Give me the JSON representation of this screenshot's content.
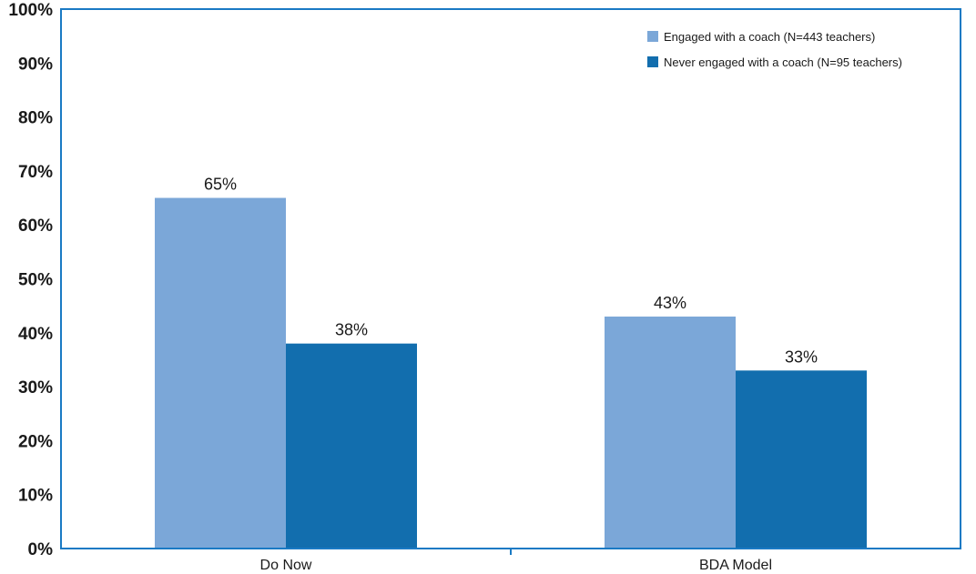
{
  "chart_data": {
    "type": "bar",
    "categories": [
      "Do Now",
      "BDA Model"
    ],
    "series": [
      {
        "name": "Engaged with a coach (N=443 teachers)",
        "values": [
          65,
          43
        ],
        "labels": [
          "65%",
          "43%"
        ],
        "color": "#7ba7d8"
      },
      {
        "name": "Never engaged with a coach (N=95 teachers)",
        "values": [
          38,
          33
        ],
        "labels": [
          "38%",
          "33%"
        ],
        "color": "#126eae"
      }
    ],
    "y_ticks": [
      "0%",
      "10%",
      "20%",
      "30%",
      "40%",
      "50%",
      "60%",
      "70%",
      "80%",
      "90%",
      "100%"
    ],
    "ylim": [
      0,
      100
    ],
    "title": "",
    "xlabel": "",
    "ylabel": "",
    "grid": false,
    "legend_position": "top-right",
    "axis_color": "#1a7ac4"
  }
}
